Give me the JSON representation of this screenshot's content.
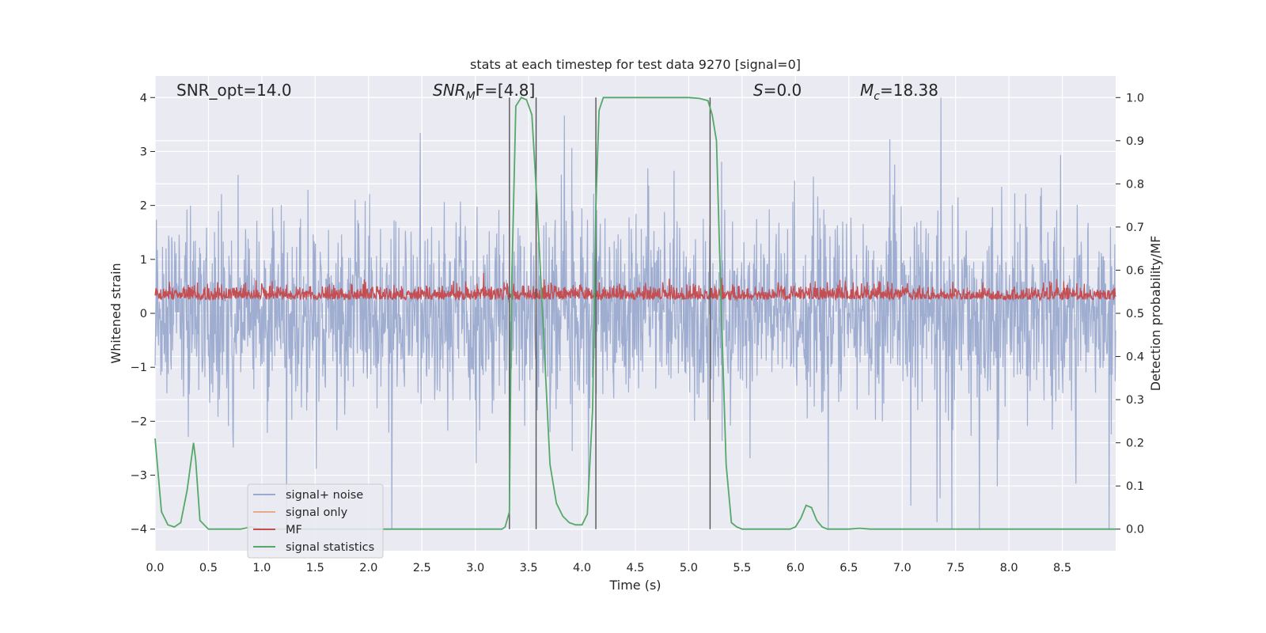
{
  "chart_data": {
    "type": "line",
    "title": "stats at each timestep for test data 9270 [signal=0]",
    "xlabel": "Time (s)",
    "ylabel": "Whitened strain",
    "y2label": "Detection probability/MF",
    "xlim": [
      0,
      9
    ],
    "ylim": [
      -4.4,
      4.4
    ],
    "y2lim": [
      -0.05,
      1.05
    ],
    "xticks": [
      "0.0",
      "0.5",
      "1.0",
      "1.5",
      "2.0",
      "2.5",
      "3.0",
      "3.5",
      "4.0",
      "4.5",
      "5.0",
      "5.5",
      "6.0",
      "6.5",
      "7.0",
      "7.5",
      "8.0",
      "8.5"
    ],
    "yticks": [
      "4",
      "3",
      "2",
      "1",
      "0",
      "−1",
      "−2",
      "−3",
      "−4"
    ],
    "y2ticks": [
      "1.0",
      "0.9",
      "0.8",
      "0.7",
      "0.6",
      "0.5",
      "0.4",
      "0.3",
      "0.2",
      "0.1",
      "0.0"
    ],
    "grid": true,
    "legend_position": "lower left",
    "colors": {
      "background": "#eaeaf2",
      "grid": "#ffffff",
      "noise": "#9aaace",
      "signal_only": "#e8a98c",
      "mf": "#c44e52",
      "stats": "#55a868",
      "vlines": "#555555"
    },
    "annotations": {
      "snr_opt": "SNR_opt=14.0",
      "snr_mf_base": "SNR",
      "snr_mf_sub": "M",
      "snr_mf_rest": "F=[4.8]",
      "s_var": "S",
      "s_val": "=0.0",
      "mc_var": "M",
      "mc_sub": "c",
      "mc_val": "=18.38"
    },
    "series": [
      {
        "name": "signal+ noise",
        "description_kind": "noise band",
        "envelope_approx": [
          -2.0,
          2.0
        ],
        "peaks_max": 4.0,
        "peaks_min": -4.0
      },
      {
        "name": "signal only"
      },
      {
        "name": "MF",
        "kind": "mf",
        "range_approx": [
          0.05,
          0.75
        ]
      },
      {
        "name": "signal statistics",
        "axis": "right",
        "x": [
          0.0,
          0.06,
          0.12,
          0.18,
          0.24,
          0.3,
          0.36,
          0.38,
          0.42,
          0.5,
          0.6,
          0.8,
          0.9,
          1.0,
          1.5,
          2.0,
          2.5,
          3.0,
          3.1,
          3.2,
          3.25,
          3.28,
          3.32,
          3.34,
          3.38,
          3.43,
          3.48,
          3.53,
          3.58,
          3.62,
          3.66,
          3.7,
          3.76,
          3.82,
          3.88,
          3.94,
          4.0,
          4.05,
          4.1,
          4.13,
          4.16,
          4.2,
          4.3,
          4.5,
          5.0,
          5.1,
          5.18,
          5.22,
          5.26,
          5.3,
          5.35,
          5.4,
          5.45,
          5.5,
          5.6,
          5.8,
          5.95,
          6.0,
          6.05,
          6.1,
          6.15,
          6.2,
          6.25,
          6.3,
          6.4,
          6.5,
          6.6,
          6.7,
          7.0,
          8.0,
          9.0
        ],
        "values": [
          0.21,
          0.04,
          0.01,
          0.005,
          0.015,
          0.09,
          0.2,
          0.16,
          0.02,
          0.0,
          0.0,
          0.0,
          0.005,
          0.0,
          0.0,
          0.0,
          0.0,
          0.0,
          0.0,
          0.0,
          0.0,
          0.005,
          0.04,
          0.55,
          0.98,
          1.0,
          0.995,
          0.96,
          0.75,
          0.55,
          0.35,
          0.15,
          0.06,
          0.03,
          0.015,
          0.01,
          0.01,
          0.035,
          0.28,
          0.75,
          0.97,
          1.0,
          1.0,
          1.0,
          1.0,
          0.998,
          0.993,
          0.96,
          0.9,
          0.55,
          0.15,
          0.015,
          0.005,
          0.0,
          0.0,
          0.0,
          0.0,
          0.005,
          0.025,
          0.055,
          0.05,
          0.02,
          0.005,
          0.0,
          0.0,
          0.0,
          0.002,
          0.0,
          0.0,
          0.0,
          0.0
        ]
      }
    ],
    "vlines_x": [
      3.32,
      3.57,
      4.13,
      5.2
    ]
  }
}
